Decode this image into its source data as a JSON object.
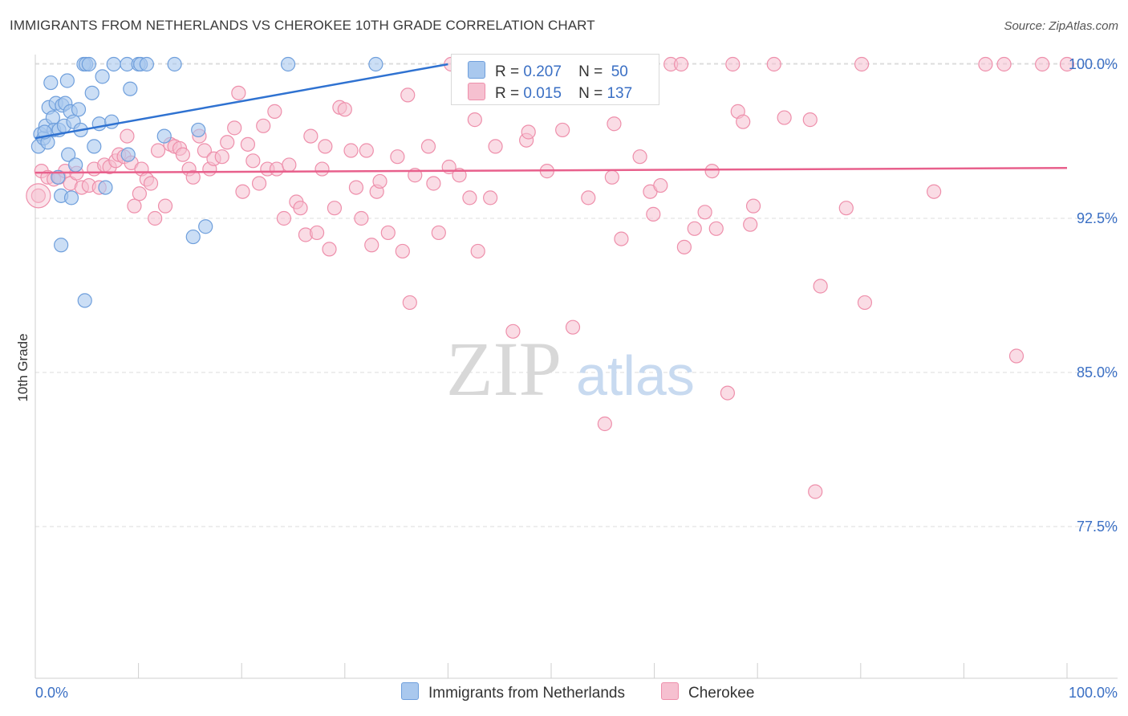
{
  "title": "IMMIGRANTS FROM NETHERLANDS VS CHEROKEE 10TH GRADE CORRELATION CHART",
  "source": "Source: ZipAtlas.com",
  "watermark": {
    "zip": "ZIP",
    "atlas": "atlas"
  },
  "legend_box": {
    "rows": [
      {
        "r_label": "R =",
        "r_value": "0.207",
        "n_label": "N =",
        "n_value": "50"
      },
      {
        "r_label": "R =",
        "r_value": "0.015",
        "n_label": "N =",
        "n_value": "137"
      }
    ]
  },
  "bottom_legend": {
    "series1": "Immigrants from Netherlands",
    "series2": "Cherokee"
  },
  "colors": {
    "blue_fill": "#a9c8ee",
    "blue_stroke": "#6f9fdc",
    "blue_line": "#2f72d1",
    "pink_fill": "#f6c0d0",
    "pink_stroke": "#ee8fab",
    "pink_line": "#e8608c",
    "tick_label": "#3a6fc4",
    "grid": "#dddddd"
  },
  "chart_data": {
    "type": "scatter",
    "title": "IMMIGRANTS FROM NETHERLANDS VS CHEROKEE 10TH GRADE CORRELATION CHART",
    "xlabel": "",
    "ylabel": "10th Grade",
    "xlim": [
      0,
      100
    ],
    "ylim": [
      70,
      100.8
    ],
    "x_tick_labels": [
      "0.0%",
      "100.0%"
    ],
    "y_ticks": [
      100.0,
      92.5,
      85.0,
      77.5
    ],
    "y_tick_labels": [
      "100.0%",
      "92.5%",
      "85.0%",
      "77.5%"
    ],
    "grid": true,
    "series": [
      {
        "name": "Immigrants from Netherlands",
        "R": 0.207,
        "N": 50,
        "trend": {
          "x0": 0.0,
          "y0": 96.4,
          "x1": 40.0,
          "y1": 100.0
        },
        "points": [
          [
            0.3,
            96.0
          ],
          [
            0.5,
            96.6
          ],
          [
            0.8,
            96.4
          ],
          [
            1.0,
            97.0
          ],
          [
            1.2,
            96.2
          ],
          [
            1.3,
            97.9
          ],
          [
            1.5,
            99.1
          ],
          [
            1.7,
            97.4
          ],
          [
            1.8,
            96.8
          ],
          [
            2.0,
            98.1
          ],
          [
            2.2,
            94.5
          ],
          [
            2.3,
            96.8
          ],
          [
            2.5,
            93.6
          ],
          [
            2.6,
            98.0
          ],
          [
            2.8,
            97.0
          ],
          [
            2.5,
            91.2
          ],
          [
            2.9,
            98.1
          ],
          [
            3.1,
            99.2
          ],
          [
            3.2,
            95.6
          ],
          [
            3.4,
            97.7
          ],
          [
            3.5,
            93.5
          ],
          [
            3.7,
            97.2
          ],
          [
            3.9,
            95.1
          ],
          [
            4.2,
            97.8
          ],
          [
            4.4,
            96.8
          ],
          [
            4.7,
            100.0
          ],
          [
            4.8,
            88.5
          ],
          [
            4.9,
            100.0
          ],
          [
            5.2,
            100.0
          ],
          [
            5.5,
            98.6
          ],
          [
            5.7,
            96.0
          ],
          [
            6.2,
            97.1
          ],
          [
            6.5,
            99.4
          ],
          [
            6.8,
            94.0
          ],
          [
            7.4,
            97.2
          ],
          [
            7.6,
            100.0
          ],
          [
            8.9,
            100.0
          ],
          [
            9.0,
            95.6
          ],
          [
            9.2,
            98.8
          ],
          [
            10.0,
            100.0
          ],
          [
            10.2,
            100.0
          ],
          [
            10.8,
            100.0
          ],
          [
            12.5,
            96.5
          ],
          [
            13.5,
            100.0
          ],
          [
            15.3,
            91.6
          ],
          [
            15.8,
            96.8
          ],
          [
            16.5,
            92.1
          ],
          [
            24.5,
            100.0
          ],
          [
            33.0,
            100.0
          ],
          [
            0.9,
            96.7
          ]
        ]
      },
      {
        "name": "Cherokee",
        "R": 0.015,
        "N": 137,
        "trend": {
          "x0": 0.0,
          "y0": 94.72,
          "x1": 100.0,
          "y1": 94.95
        },
        "points": [
          [
            0.3,
            93.6
          ],
          [
            0.6,
            94.8
          ],
          [
            1.2,
            94.5
          ],
          [
            1.8,
            94.4
          ],
          [
            2.3,
            94.5
          ],
          [
            2.9,
            94.8
          ],
          [
            3.4,
            94.2
          ],
          [
            4.0,
            94.7
          ],
          [
            4.5,
            94.0
          ],
          [
            5.2,
            94.1
          ],
          [
            5.7,
            94.9
          ],
          [
            6.2,
            94.0
          ],
          [
            6.7,
            95.1
          ],
          [
            7.2,
            95.0
          ],
          [
            7.8,
            95.3
          ],
          [
            8.1,
            95.6
          ],
          [
            8.6,
            95.5
          ],
          [
            8.9,
            96.5
          ],
          [
            9.3,
            95.2
          ],
          [
            9.6,
            93.1
          ],
          [
            10.1,
            93.7
          ],
          [
            10.3,
            94.9
          ],
          [
            10.8,
            94.4
          ],
          [
            11.2,
            94.2
          ],
          [
            11.6,
            92.5
          ],
          [
            11.9,
            95.8
          ],
          [
            12.6,
            93.1
          ],
          [
            13.1,
            96.1
          ],
          [
            13.5,
            96.0
          ],
          [
            14.0,
            95.9
          ],
          [
            14.3,
            95.6
          ],
          [
            14.9,
            94.9
          ],
          [
            15.3,
            94.5
          ],
          [
            15.9,
            96.5
          ],
          [
            16.4,
            95.8
          ],
          [
            16.9,
            94.9
          ],
          [
            17.3,
            95.4
          ],
          [
            18.1,
            95.5
          ],
          [
            18.6,
            96.2
          ],
          [
            19.3,
            96.9
          ],
          [
            19.7,
            98.6
          ],
          [
            20.1,
            93.8
          ],
          [
            20.6,
            96.1
          ],
          [
            21.1,
            95.3
          ],
          [
            21.7,
            94.2
          ],
          [
            22.1,
            97.0
          ],
          [
            22.5,
            94.9
          ],
          [
            23.2,
            97.7
          ],
          [
            23.4,
            94.9
          ],
          [
            24.1,
            92.5
          ],
          [
            24.6,
            95.1
          ],
          [
            25.3,
            93.3
          ],
          [
            25.7,
            93.0
          ],
          [
            26.2,
            91.7
          ],
          [
            26.7,
            96.5
          ],
          [
            27.3,
            91.8
          ],
          [
            27.8,
            94.9
          ],
          [
            28.1,
            96.0
          ],
          [
            28.5,
            91.0
          ],
          [
            29.0,
            93.0
          ],
          [
            29.5,
            97.9
          ],
          [
            30.0,
            97.8
          ],
          [
            30.6,
            95.8
          ],
          [
            31.1,
            94.0
          ],
          [
            31.6,
            92.5
          ],
          [
            32.1,
            95.8
          ],
          [
            32.6,
            91.2
          ],
          [
            33.1,
            93.8
          ],
          [
            33.4,
            94.3
          ],
          [
            34.2,
            91.8
          ],
          [
            35.1,
            95.5
          ],
          [
            35.6,
            90.9
          ],
          [
            36.1,
            98.5
          ],
          [
            36.3,
            88.4
          ],
          [
            36.8,
            94.6
          ],
          [
            38.1,
            96.0
          ],
          [
            38.6,
            94.2
          ],
          [
            39.1,
            91.8
          ],
          [
            40.1,
            95.0
          ],
          [
            40.3,
            100.0
          ],
          [
            41.1,
            94.6
          ],
          [
            41.6,
            100.0
          ],
          [
            42.1,
            93.5
          ],
          [
            42.6,
            97.3
          ],
          [
            42.9,
            90.9
          ],
          [
            43.6,
            100.0
          ],
          [
            44.1,
            93.5
          ],
          [
            44.6,
            96.0
          ],
          [
            46.0,
            100.0
          ],
          [
            46.3,
            87.0
          ],
          [
            47.6,
            96.3
          ],
          [
            47.8,
            96.7
          ],
          [
            48.7,
            100.0
          ],
          [
            49.6,
            94.8
          ],
          [
            50.1,
            100.0
          ],
          [
            51.1,
            96.8
          ],
          [
            51.6,
            100.0
          ],
          [
            52.1,
            87.2
          ],
          [
            52.6,
            100.0
          ],
          [
            53.6,
            93.5
          ],
          [
            53.9,
            100.0
          ],
          [
            55.2,
            82.5
          ],
          [
            55.9,
            94.5
          ],
          [
            56.1,
            97.1
          ],
          [
            56.8,
            91.5
          ],
          [
            58.6,
            95.5
          ],
          [
            59.6,
            93.8
          ],
          [
            59.9,
            92.7
          ],
          [
            60.6,
            94.1
          ],
          [
            61.6,
            100.0
          ],
          [
            62.6,
            100.0
          ],
          [
            62.9,
            91.1
          ],
          [
            63.9,
            92.0
          ],
          [
            64.9,
            92.8
          ],
          [
            65.6,
            94.8
          ],
          [
            66.0,
            92.0
          ],
          [
            67.1,
            84.0
          ],
          [
            67.6,
            100.0
          ],
          [
            68.1,
            97.7
          ],
          [
            68.6,
            97.2
          ],
          [
            69.3,
            92.2
          ],
          [
            69.6,
            93.1
          ],
          [
            71.6,
            100.0
          ],
          [
            72.6,
            97.4
          ],
          [
            75.1,
            97.3
          ],
          [
            75.6,
            79.2
          ],
          [
            76.1,
            89.2
          ],
          [
            78.6,
            93.0
          ],
          [
            80.1,
            100.0
          ],
          [
            80.4,
            88.4
          ],
          [
            87.1,
            93.8
          ],
          [
            92.1,
            100.0
          ],
          [
            93.9,
            100.0
          ],
          [
            95.1,
            85.8
          ],
          [
            97.6,
            100.0
          ],
          [
            100.0,
            100.0
          ]
        ]
      }
    ]
  }
}
